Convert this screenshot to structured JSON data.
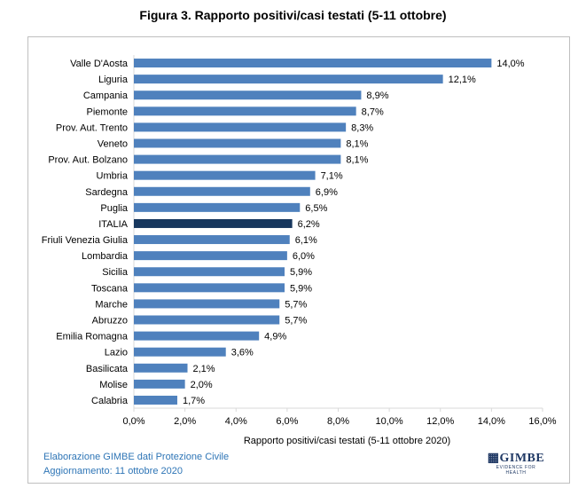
{
  "title": "Figura 3. Rapporto positivi/casi testati (5-11 ottobre)",
  "footer": {
    "line1": "Elaborazione GIMBE dati Protezione Civile",
    "line2": "Aggiornamento: 11 ottobre 2020"
  },
  "logo": {
    "text": "GIMBE",
    "tagline": "EVIDENCE FOR HEALTH"
  },
  "chart_data": {
    "type": "bar",
    "orientation": "horizontal",
    "categories": [
      "Valle D'Aosta",
      "Liguria",
      "Campania",
      "Piemonte",
      "Prov. Aut. Trento",
      "Veneto",
      "Prov. Aut. Bolzano",
      "Umbria",
      "Sardegna",
      "Puglia",
      "ITALIA",
      "Friuli Venezia Giulia",
      "Lombardia",
      "Sicilia",
      "Toscana",
      "Marche",
      "Abruzzo",
      "Emilia Romagna",
      "Lazio",
      "Basilicata",
      "Molise",
      "Calabria"
    ],
    "values": [
      14.0,
      12.1,
      8.9,
      8.7,
      8.3,
      8.1,
      8.1,
      7.1,
      6.9,
      6.5,
      6.2,
      6.1,
      6.0,
      5.9,
      5.9,
      5.7,
      5.7,
      4.9,
      3.6,
      2.1,
      2.0,
      1.7
    ],
    "value_labels": [
      "14,0%",
      "12,1%",
      "8,9%",
      "8,7%",
      "8,3%",
      "8,1%",
      "8,1%",
      "7,1%",
      "6,9%",
      "6,5%",
      "6,2%",
      "6,1%",
      "6,0%",
      "5,9%",
      "5,9%",
      "5,7%",
      "5,7%",
      "4,9%",
      "3,6%",
      "2,1%",
      "2,0%",
      "1,7%"
    ],
    "highlight": "ITALIA",
    "xlabel": "Rapporto positivi/casi testati (5-11 ottobre 2020)",
    "xlim": [
      0,
      16
    ],
    "xticks": [
      0,
      2,
      4,
      6,
      8,
      10,
      12,
      14,
      16
    ],
    "xtick_labels": [
      "0,0%",
      "2,0%",
      "4,0%",
      "6,0%",
      "8,0%",
      "10,0%",
      "12,0%",
      "14,0%",
      "16,0%"
    ],
    "grid": false,
    "colors": {
      "bar": "#4f81bd",
      "highlight": "#17375e",
      "axis": "#d9d9d9",
      "text": "#000000"
    }
  }
}
